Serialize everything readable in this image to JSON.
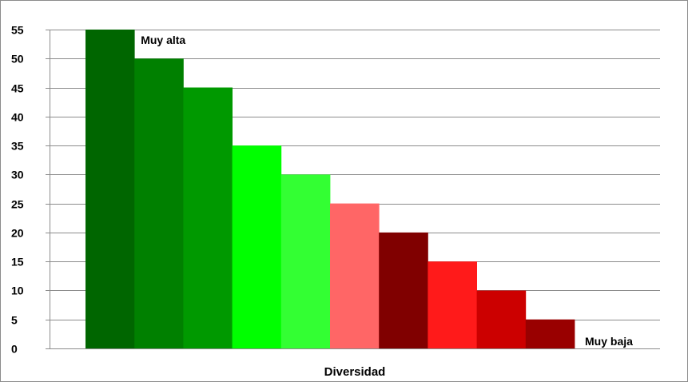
{
  "chart_data": {
    "type": "bar",
    "xlabel": "Diversidad",
    "ylabel": "",
    "ylim": [
      0,
      55
    ],
    "y_ticks": [
      0,
      5,
      10,
      15,
      20,
      25,
      30,
      35,
      40,
      45,
      50,
      55
    ],
    "grid": true,
    "legend": "none",
    "values": [
      55,
      50,
      45,
      35,
      30,
      25,
      20,
      15,
      10,
      5
    ],
    "colors": [
      "#006600",
      "#008000",
      "#009900",
      "#00ff00",
      "#33ff33",
      "#ff6666",
      "#800000",
      "#ff1a1a",
      "#cc0000",
      "#990000"
    ],
    "annotations": [
      {
        "text": "Muy alta",
        "anchor_bar": 0,
        "position": "top-right of first bar"
      },
      {
        "text": "Muy baja",
        "anchor_bar": 10,
        "position": "baseline after last bar"
      }
    ]
  }
}
